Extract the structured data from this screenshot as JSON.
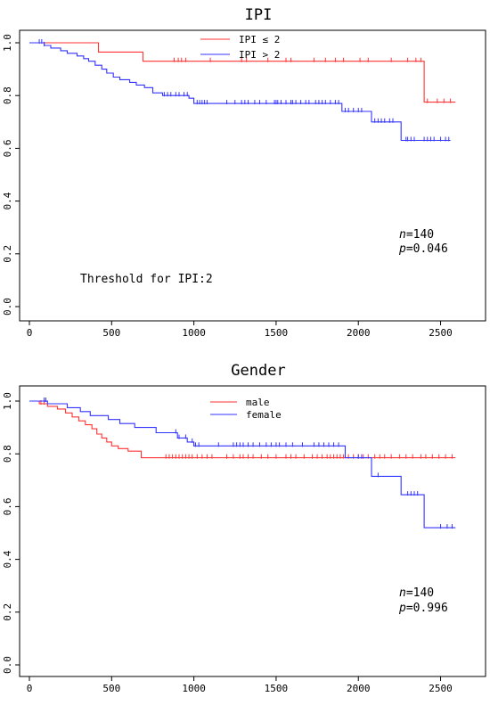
{
  "chart_data": [
    {
      "type": "line",
      "subtype": "kaplan-meier",
      "title": "IPI",
      "xlim": [
        0,
        2600
      ],
      "ylim": [
        0,
        1.0
      ],
      "xticks": [
        0,
        500,
        1000,
        1500,
        2000,
        2500
      ],
      "yticks": [
        0.0,
        0.2,
        0.4,
        0.6,
        0.8,
        1.0
      ],
      "ytick_labels": [
        "0.0",
        "0.2",
        "0.4",
        "0.6",
        "0.8",
        "1.0"
      ],
      "legend_position": "top-center",
      "annotations": [
        "n=140",
        "p=0.046"
      ],
      "note": "Threshold for IPI:2",
      "series": [
        {
          "name": "IPI ≤ 2",
          "color": "#ff3333",
          "steps": [
            [
              0,
              1.0
            ],
            [
              420,
              0.965
            ],
            [
              690,
              0.93
            ],
            [
              2400,
              0.775
            ],
            [
              2590,
              0.775
            ]
          ],
          "censor": [
            880,
            905,
            925,
            950,
            1100,
            1290,
            1320,
            1450,
            1560,
            1590,
            1730,
            1800,
            1860,
            1910,
            2010,
            2060,
            2200,
            2300,
            2350,
            2380,
            2420,
            2480,
            2520,
            2560
          ]
        },
        {
          "name": "IPI > 2",
          "color": "#3333ff",
          "steps": [
            [
              0,
              1.0
            ],
            [
              90,
              0.99
            ],
            [
              130,
              0.98
            ],
            [
              190,
              0.97
            ],
            [
              230,
              0.96
            ],
            [
              290,
              0.95
            ],
            [
              330,
              0.94
            ],
            [
              360,
              0.93
            ],
            [
              400,
              0.915
            ],
            [
              440,
              0.9
            ],
            [
              470,
              0.885
            ],
            [
              510,
              0.87
            ],
            [
              550,
              0.86
            ],
            [
              610,
              0.85
            ],
            [
              650,
              0.84
            ],
            [
              700,
              0.83
            ],
            [
              750,
              0.81
            ],
            [
              810,
              0.8
            ],
            [
              970,
              0.79
            ],
            [
              1000,
              0.77
            ],
            [
              1900,
              0.74
            ],
            [
              2080,
              0.7
            ],
            [
              2260,
              0.63
            ],
            [
              2560,
              0.63
            ]
          ],
          "censor": [
            60,
            75,
            90,
            820,
            840,
            860,
            890,
            910,
            940,
            960,
            1020,
            1035,
            1050,
            1065,
            1080,
            1200,
            1250,
            1290,
            1310,
            1330,
            1370,
            1400,
            1440,
            1490,
            1500,
            1510,
            1530,
            1560,
            1590,
            1600,
            1620,
            1650,
            1680,
            1700,
            1740,
            1760,
            1780,
            1800,
            1830,
            1860,
            1880,
            1920,
            1940,
            1970,
            2000,
            2020,
            2100,
            2120,
            2140,
            2160,
            2190,
            2210,
            2290,
            2300,
            2320,
            2340,
            2400,
            2420,
            2440,
            2460,
            2500,
            2530,
            2550
          ]
        }
      ]
    },
    {
      "type": "line",
      "subtype": "kaplan-meier",
      "title": "Gender",
      "xlim": [
        0,
        2600
      ],
      "ylim": [
        0,
        1.0
      ],
      "xticks": [
        0,
        500,
        1000,
        1500,
        2000,
        2500
      ],
      "yticks": [
        0.0,
        0.2,
        0.4,
        0.6,
        0.8,
        1.0
      ],
      "ytick_labels": [
        "0.0",
        "0.2",
        "0.4",
        "0.6",
        "0.8",
        "1.0"
      ],
      "legend_position": "top-center",
      "annotations": [
        "n=140",
        "p=0.996"
      ],
      "note": "",
      "series": [
        {
          "name": "male",
          "color": "#ff3333",
          "steps": [
            [
              0,
              1.0
            ],
            [
              60,
              0.99
            ],
            [
              110,
              0.98
            ],
            [
              170,
              0.97
            ],
            [
              220,
              0.955
            ],
            [
              260,
              0.94
            ],
            [
              300,
              0.925
            ],
            [
              340,
              0.91
            ],
            [
              380,
              0.895
            ],
            [
              410,
              0.875
            ],
            [
              440,
              0.86
            ],
            [
              470,
              0.845
            ],
            [
              500,
              0.83
            ],
            [
              540,
              0.82
            ],
            [
              600,
              0.81
            ],
            [
              680,
              0.785
            ],
            [
              2590,
              0.785
            ]
          ],
          "censor": [
            70,
            90,
            830,
            850,
            870,
            890,
            910,
            930,
            950,
            970,
            990,
            1020,
            1050,
            1080,
            1110,
            1200,
            1240,
            1280,
            1300,
            1330,
            1360,
            1410,
            1450,
            1500,
            1560,
            1590,
            1620,
            1670,
            1720,
            1750,
            1780,
            1810,
            1830,
            1850,
            1870,
            1890,
            1910,
            1940,
            1970,
            2000,
            2030,
            2060,
            2100,
            2130,
            2160,
            2200,
            2250,
            2290,
            2330,
            2380,
            2410,
            2450,
            2490,
            2530,
            2570
          ]
        },
        {
          "name": "female",
          "color": "#3333ff",
          "steps": [
            [
              0,
              1.0
            ],
            [
              110,
              0.99
            ],
            [
              230,
              0.975
            ],
            [
              310,
              0.96
            ],
            [
              370,
              0.945
            ],
            [
              480,
              0.93
            ],
            [
              550,
              0.915
            ],
            [
              640,
              0.9
            ],
            [
              770,
              0.88
            ],
            [
              900,
              0.86
            ],
            [
              960,
              0.845
            ],
            [
              1000,
              0.83
            ],
            [
              1920,
              0.785
            ],
            [
              2080,
              0.715
            ],
            [
              2260,
              0.645
            ],
            [
              2400,
              0.52
            ],
            [
              2590,
              0.52
            ]
          ],
          "censor": [
            90,
            100,
            890,
            910,
            950,
            990,
            1010,
            1030,
            1150,
            1240,
            1260,
            1280,
            1300,
            1330,
            1360,
            1400,
            1440,
            1470,
            1500,
            1520,
            1560,
            1600,
            1660,
            1730,
            1760,
            1790,
            1820,
            1850,
            1880,
            2000,
            2020,
            2120,
            2300,
            2320,
            2340,
            2360,
            2500,
            2540,
            2570
          ]
        }
      ]
    }
  ]
}
